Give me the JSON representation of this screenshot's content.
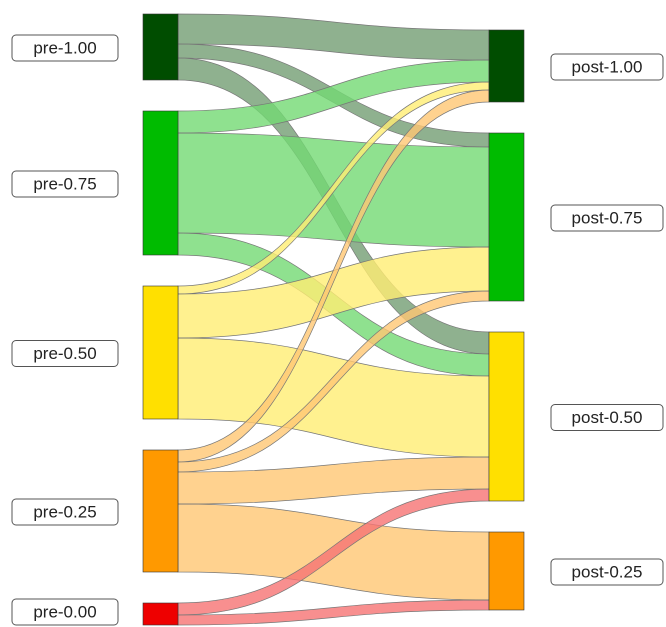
{
  "chart_data": {
    "type": "sankey",
    "nodes": [
      {
        "name": "pre-1.00",
        "color": "#004d00",
        "column": 0
      },
      {
        "name": "pre-0.75",
        "color": "#00bb00",
        "column": 0
      },
      {
        "name": "pre-0.50",
        "color": "#ffe000",
        "column": 0
      },
      {
        "name": "pre-0.25",
        "color": "#ff9900",
        "column": 0
      },
      {
        "name": "pre-0.00",
        "color": "#ee0000",
        "column": 0
      },
      {
        "name": "post-1.00",
        "color": "#004d00",
        "column": 1
      },
      {
        "name": "post-0.75",
        "color": "#00bb00",
        "column": 1
      },
      {
        "name": "post-0.50",
        "color": "#ffe000",
        "column": 1
      },
      {
        "name": "post-0.25",
        "color": "#ff9900",
        "column": 1
      }
    ],
    "links": [
      {
        "source": 0,
        "target": 5,
        "value": 30
      },
      {
        "source": 0,
        "target": 6,
        "value": 14
      },
      {
        "source": 0,
        "target": 7,
        "value": 22
      },
      {
        "source": 1,
        "target": 5,
        "value": 22
      },
      {
        "source": 1,
        "target": 6,
        "value": 100
      },
      {
        "source": 1,
        "target": 7,
        "value": 22
      },
      {
        "source": 2,
        "target": 5,
        "value": 8
      },
      {
        "source": 2,
        "target": 6,
        "value": 44
      },
      {
        "source": 2,
        "target": 7,
        "value": 81
      },
      {
        "source": 3,
        "target": 5,
        "value": 12
      },
      {
        "source": 3,
        "target": 6,
        "value": 10
      },
      {
        "source": 3,
        "target": 7,
        "value": 32
      },
      {
        "source": 3,
        "target": 8,
        "value": 68
      },
      {
        "source": 4,
        "target": 7,
        "value": 12
      },
      {
        "source": 4,
        "target": 8,
        "value": 10
      }
    ]
  }
}
